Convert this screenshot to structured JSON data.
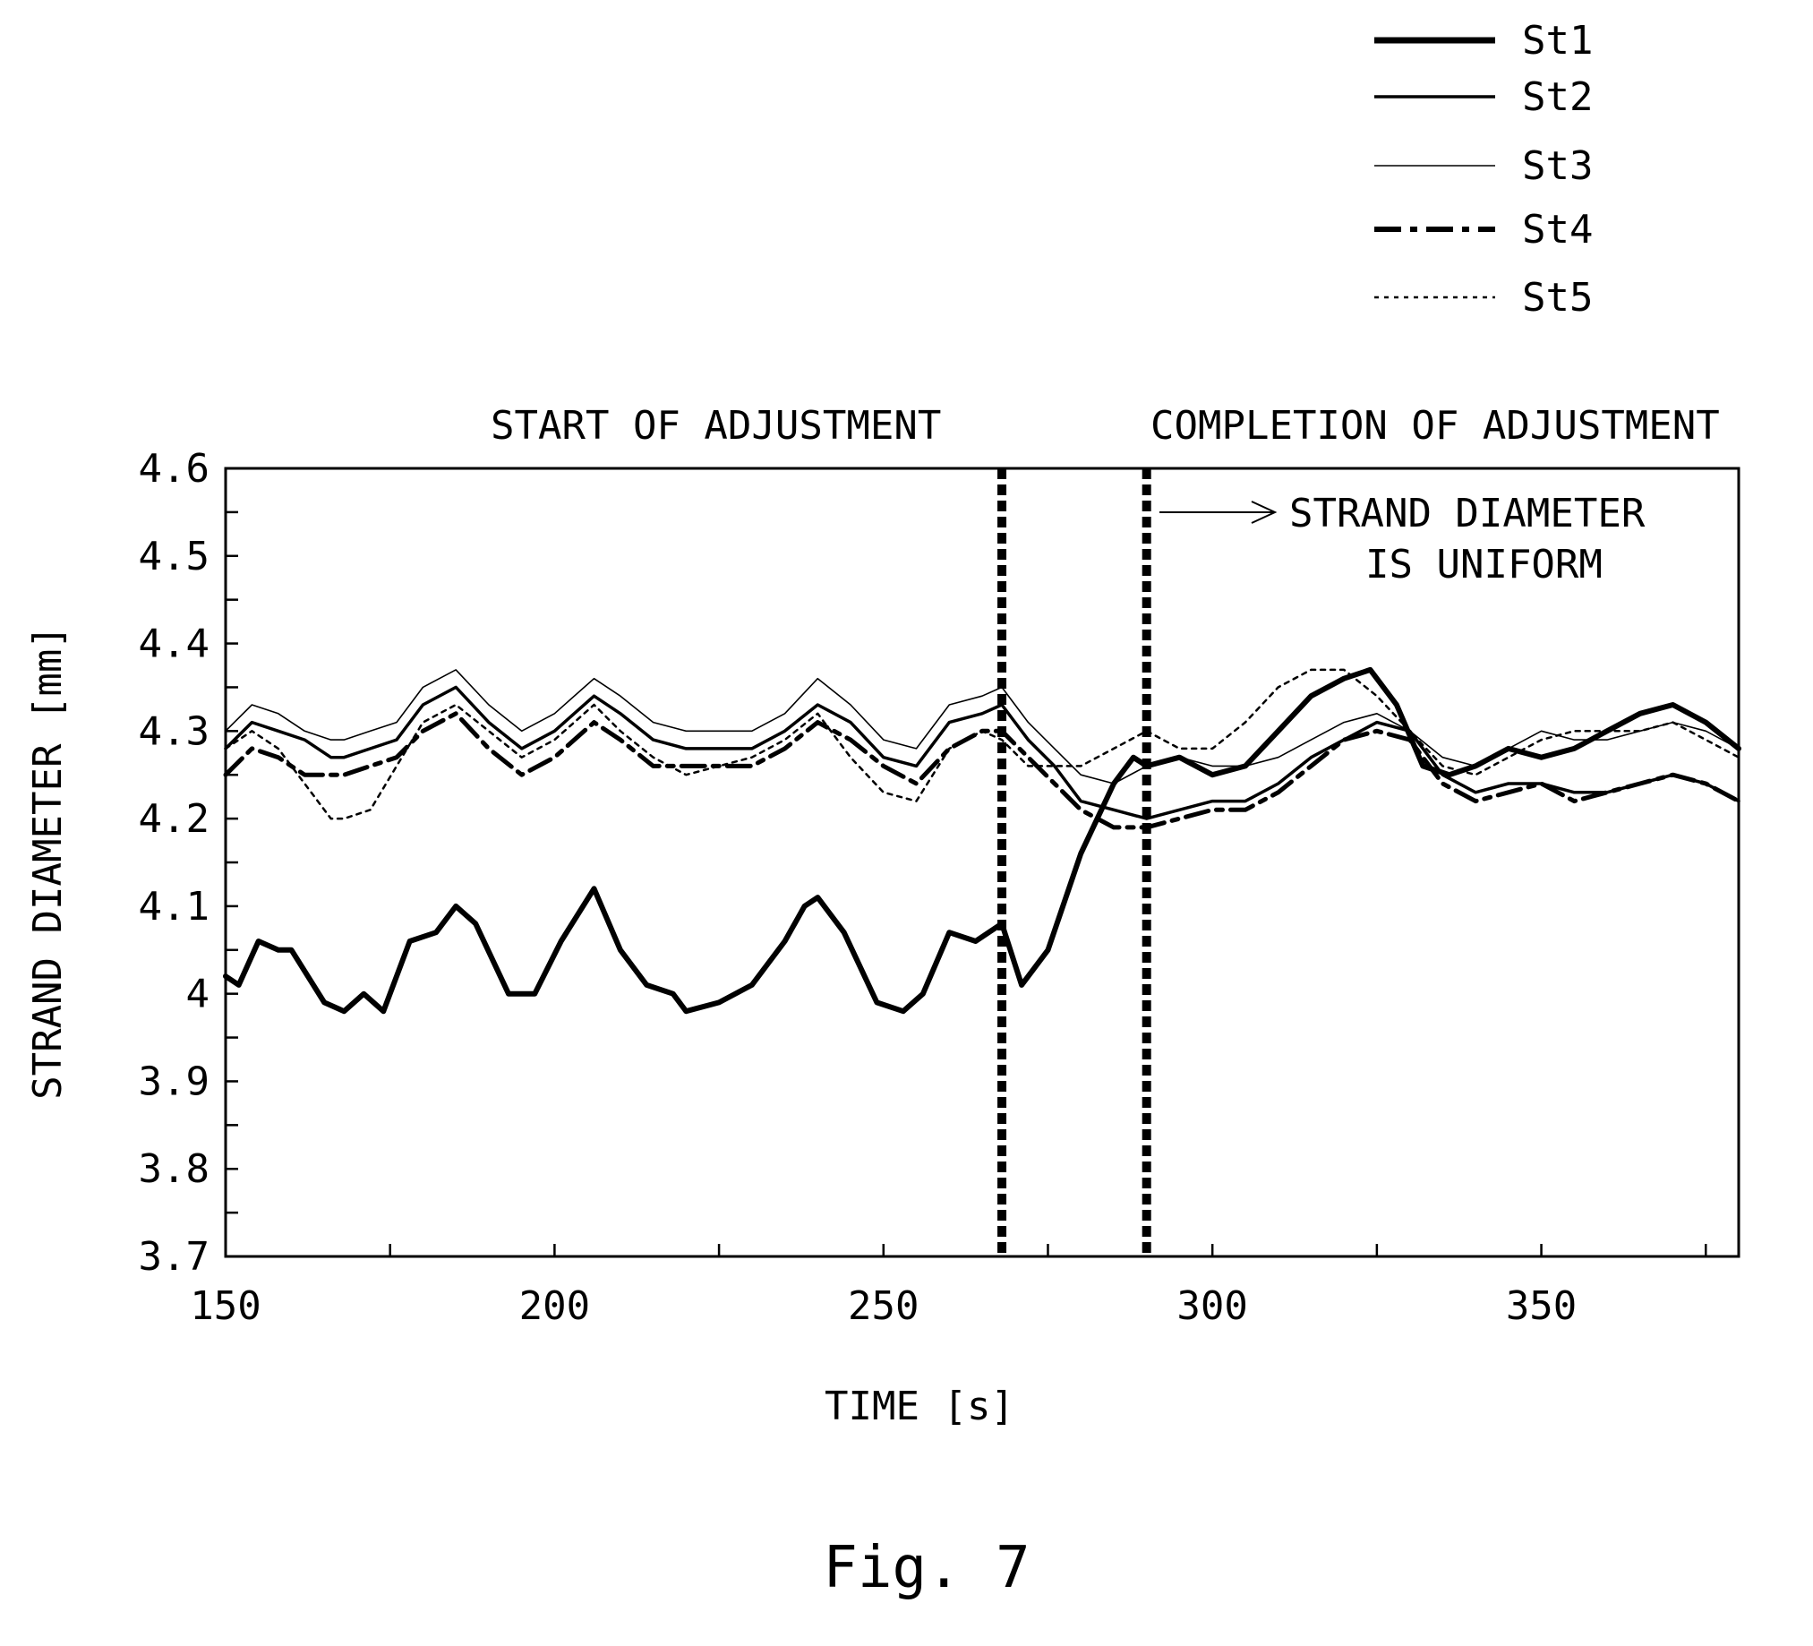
{
  "chart_data": {
    "type": "line",
    "title": "",
    "caption": "Fig. 7",
    "xlabel": "TIME [s]",
    "ylabel": "STRAND DIAMETER [mm]",
    "xlim": [
      150,
      380
    ],
    "ylim": [
      3.7,
      4.6
    ],
    "x_ticks": [
      150,
      200,
      250,
      300,
      350
    ],
    "x_tick_labels": [
      "150",
      "200",
      "250",
      "300",
      "350"
    ],
    "y_ticks": [
      3.7,
      3.8,
      3.9,
      4.0,
      4.1,
      4.2,
      4.3,
      4.4,
      4.5,
      4.6
    ],
    "y_tick_labels": [
      "3.7",
      "3.8",
      "3.9",
      "4",
      "4.1",
      "4.2",
      "4.3",
      "4.4",
      "4.5",
      "4.6"
    ],
    "grid": false,
    "legend_position": "top-right",
    "annotations": {
      "start": {
        "x": 268,
        "label": "START OF ADJUSTMENT"
      },
      "completion": {
        "x": 290,
        "label": "COMPLETION OF ADJUSTMENT"
      },
      "note_line1": "STRAND DIAMETER",
      "note_line2": "IS UNIFORM"
    },
    "series": [
      {
        "name": "St1",
        "style": "thick-solid",
        "x": [
          150,
          152,
          155,
          158,
          160,
          165,
          168,
          171,
          174,
          178,
          182,
          185,
          188,
          193,
          197,
          201,
          206,
          210,
          214,
          218,
          220,
          225,
          230,
          235,
          238,
          240,
          244,
          249,
          253,
          256,
          260,
          264,
          268,
          271,
          275,
          280,
          285,
          288,
          290,
          295,
          300,
          305,
          310,
          315,
          320,
          324,
          328,
          332,
          336,
          340,
          345,
          350,
          355,
          360,
          365,
          370,
          375,
          380
        ],
        "y": [
          4.02,
          4.01,
          4.06,
          4.05,
          4.05,
          3.99,
          3.98,
          4.0,
          3.98,
          4.06,
          4.07,
          4.1,
          4.08,
          4.0,
          4.0,
          4.06,
          4.12,
          4.05,
          4.01,
          4.0,
          3.98,
          3.99,
          4.01,
          4.06,
          4.1,
          4.11,
          4.07,
          3.99,
          3.98,
          4.0,
          4.07,
          4.06,
          4.08,
          4.01,
          4.05,
          4.16,
          4.24,
          4.27,
          4.26,
          4.27,
          4.25,
          4.26,
          4.3,
          4.34,
          4.36,
          4.37,
          4.33,
          4.26,
          4.25,
          4.26,
          4.28,
          4.27,
          4.28,
          4.3,
          4.32,
          4.33,
          4.31,
          4.28
        ]
      },
      {
        "name": "St2",
        "style": "solid",
        "x": [
          150,
          154,
          158,
          162,
          166,
          168,
          172,
          176,
          180,
          185,
          190,
          195,
          200,
          206,
          210,
          215,
          220,
          225,
          230,
          235,
          240,
          245,
          250,
          255,
          260,
          265,
          268,
          272,
          276,
          280,
          285,
          290,
          295,
          300,
          305,
          310,
          315,
          320,
          325,
          330,
          335,
          340,
          345,
          350,
          355,
          360,
          365,
          370,
          375,
          380
        ],
        "y": [
          4.28,
          4.31,
          4.3,
          4.29,
          4.27,
          4.27,
          4.28,
          4.29,
          4.33,
          4.35,
          4.31,
          4.28,
          4.3,
          4.34,
          4.32,
          4.29,
          4.28,
          4.28,
          4.28,
          4.3,
          4.33,
          4.31,
          4.27,
          4.26,
          4.31,
          4.32,
          4.33,
          4.29,
          4.26,
          4.22,
          4.21,
          4.2,
          4.21,
          4.22,
          4.22,
          4.24,
          4.27,
          4.29,
          4.31,
          4.3,
          4.25,
          4.23,
          4.24,
          4.24,
          4.23,
          4.23,
          4.24,
          4.25,
          4.24,
          4.22
        ]
      },
      {
        "name": "St3",
        "style": "thin-solid",
        "x": [
          150,
          154,
          158,
          162,
          166,
          168,
          172,
          176,
          180,
          185,
          190,
          195,
          200,
          206,
          210,
          215,
          220,
          225,
          230,
          235,
          240,
          245,
          250,
          255,
          260,
          265,
          268,
          272,
          276,
          280,
          285,
          290,
          295,
          300,
          305,
          310,
          315,
          320,
          325,
          330,
          335,
          340,
          345,
          350,
          355,
          360,
          365,
          370,
          375,
          380
        ],
        "y": [
          4.3,
          4.33,
          4.32,
          4.3,
          4.29,
          4.29,
          4.3,
          4.31,
          4.35,
          4.37,
          4.33,
          4.3,
          4.32,
          4.36,
          4.34,
          4.31,
          4.3,
          4.3,
          4.3,
          4.32,
          4.36,
          4.33,
          4.29,
          4.28,
          4.33,
          4.34,
          4.35,
          4.31,
          4.28,
          4.25,
          4.24,
          4.26,
          4.27,
          4.26,
          4.26,
          4.27,
          4.29,
          4.31,
          4.32,
          4.3,
          4.27,
          4.26,
          4.28,
          4.3,
          4.29,
          4.29,
          4.3,
          4.31,
          4.3,
          4.28
        ]
      },
      {
        "name": "St4",
        "style": "dash-dot",
        "x": [
          150,
          154,
          158,
          162,
          166,
          168,
          172,
          176,
          180,
          185,
          190,
          195,
          200,
          206,
          210,
          215,
          220,
          225,
          230,
          235,
          240,
          245,
          250,
          255,
          260,
          265,
          268,
          272,
          276,
          280,
          285,
          290,
          295,
          300,
          305,
          310,
          315,
          320,
          325,
          330,
          335,
          340,
          345,
          350,
          355,
          360,
          365,
          370,
          375,
          380
        ],
        "y": [
          4.25,
          4.28,
          4.27,
          4.25,
          4.25,
          4.25,
          4.26,
          4.27,
          4.3,
          4.32,
          4.28,
          4.25,
          4.27,
          4.31,
          4.29,
          4.26,
          4.26,
          4.26,
          4.26,
          4.28,
          4.31,
          4.29,
          4.26,
          4.24,
          4.28,
          4.3,
          4.3,
          4.27,
          4.24,
          4.21,
          4.19,
          4.19,
          4.2,
          4.21,
          4.21,
          4.23,
          4.26,
          4.29,
          4.3,
          4.29,
          4.24,
          4.22,
          4.23,
          4.24,
          4.22,
          4.23,
          4.24,
          4.25,
          4.24,
          4.22
        ]
      },
      {
        "name": "St5",
        "style": "dotted",
        "x": [
          150,
          154,
          158,
          162,
          166,
          168,
          172,
          176,
          180,
          185,
          190,
          195,
          200,
          206,
          210,
          215,
          220,
          225,
          230,
          235,
          240,
          245,
          250,
          255,
          260,
          265,
          268,
          272,
          276,
          280,
          285,
          290,
          295,
          300,
          305,
          310,
          315,
          320,
          325,
          330,
          335,
          340,
          345,
          350,
          355,
          360,
          365,
          370,
          375,
          380
        ],
        "y": [
          4.28,
          4.3,
          4.28,
          4.24,
          4.2,
          4.2,
          4.21,
          4.26,
          4.31,
          4.33,
          4.3,
          4.27,
          4.29,
          4.33,
          4.3,
          4.27,
          4.25,
          4.26,
          4.27,
          4.29,
          4.32,
          4.27,
          4.23,
          4.22,
          4.28,
          4.3,
          4.29,
          4.26,
          4.26,
          4.26,
          4.28,
          4.3,
          4.28,
          4.28,
          4.31,
          4.35,
          4.37,
          4.37,
          4.34,
          4.3,
          4.26,
          4.25,
          4.27,
          4.29,
          4.3,
          4.3,
          4.3,
          4.31,
          4.29,
          4.27
        ]
      }
    ]
  }
}
